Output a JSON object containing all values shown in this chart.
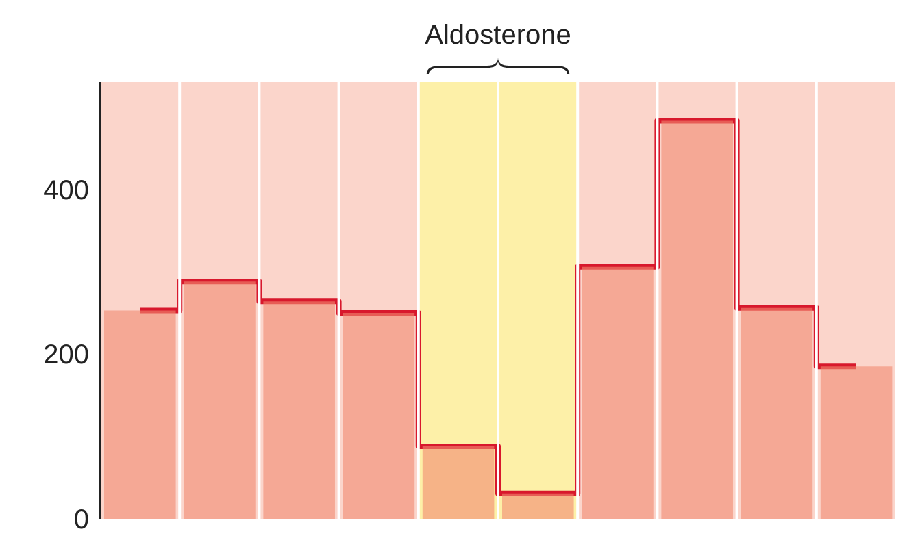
{
  "chart_data": {
    "type": "step",
    "categories": [
      null,
      null,
      null,
      null,
      null,
      null,
      null,
      null,
      null,
      null
    ],
    "series": [
      {
        "type": "bar",
        "color": "#f28a72",
        "values": [
          253,
          288,
          264,
          250,
          88,
          31,
          306,
          483,
          256,
          185
        ]
      },
      {
        "color": "#d8182c",
        "values": [
          253,
          288,
          264,
          250,
          88,
          31,
          306,
          483,
          256,
          185
        ]
      }
    ],
    "ylim": [
      0,
      530
    ],
    "yticks": [
      0,
      200,
      400
    ],
    "tick_labels": "y",
    "grid": "x",
    "annotations": [
      "Aldosterone"
    ]
  }
}
